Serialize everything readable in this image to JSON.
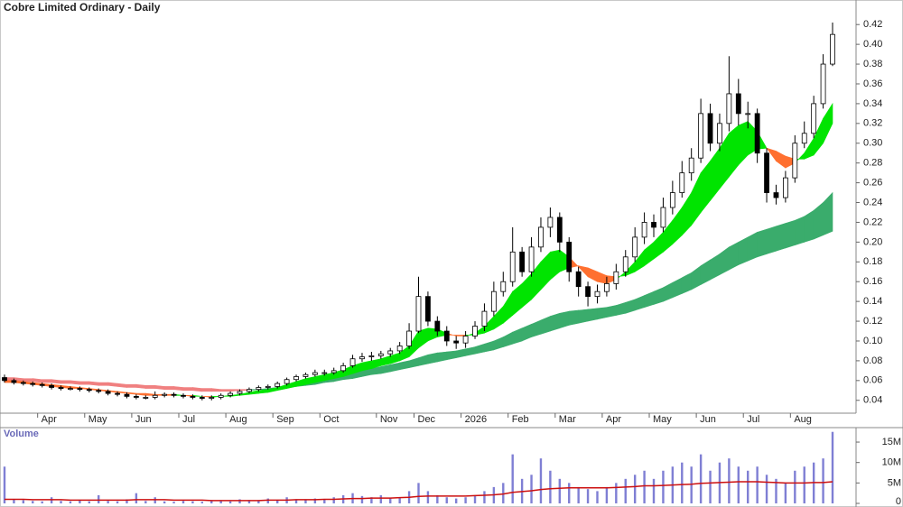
{
  "chart_data": {
    "type": "candlestick",
    "title": "Cobre Limited Ordinary - Daily",
    "categories": [
      null,
      null,
      null,
      null,
      "Apr",
      null,
      null,
      null,
      null,
      "May",
      null,
      null,
      null,
      null,
      "Jun",
      null,
      null,
      null,
      null,
      "Jul",
      null,
      null,
      null,
      null,
      "Aug",
      null,
      null,
      null,
      null,
      "Sep",
      null,
      null,
      null,
      null,
      "Oct",
      null,
      null,
      null,
      null,
      null,
      "Nov",
      null,
      null,
      null,
      "Dec",
      null,
      null,
      null,
      null,
      "2026",
      null,
      null,
      null,
      null,
      "Feb",
      null,
      null,
      null,
      null,
      "Mar",
      null,
      null,
      null,
      null,
      "Apr",
      null,
      null,
      null,
      null,
      "May",
      null,
      null,
      null,
      null,
      "Jun",
      null,
      null,
      null,
      null,
      "Jul",
      null,
      null,
      null,
      null,
      "Aug",
      null,
      null,
      null,
      null
    ],
    "open": [
      0.063,
      0.06,
      0.058,
      0.057,
      0.056,
      0.055,
      0.053,
      0.052,
      0.052,
      0.051,
      0.05,
      0.049,
      0.047,
      0.046,
      0.044,
      0.043,
      0.043,
      0.045,
      0.046,
      0.045,
      0.044,
      0.043,
      0.042,
      0.043,
      0.045,
      0.047,
      0.049,
      0.051,
      0.053,
      0.054,
      0.057,
      0.061,
      0.064,
      0.066,
      0.068,
      0.068,
      0.07,
      0.075,
      0.082,
      0.084,
      0.085,
      0.087,
      0.09,
      0.095,
      0.11,
      0.145,
      0.12,
      0.11,
      0.1,
      0.098,
      0.105,
      0.115,
      0.13,
      0.15,
      0.16,
      0.19,
      0.17,
      0.195,
      0.215,
      0.225,
      0.2,
      0.17,
      0.155,
      0.145,
      0.15,
      0.158,
      0.17,
      0.185,
      0.205,
      0.22,
      0.215,
      0.235,
      0.25,
      0.27,
      0.285,
      0.33,
      0.3,
      0.32,
      0.35,
      0.33,
      0.33,
      0.29,
      0.25,
      0.245,
      0.265,
      0.3,
      0.31,
      0.34,
      0.38
    ],
    "high": [
      0.066,
      0.062,
      0.06,
      0.059,
      0.058,
      0.057,
      0.055,
      0.054,
      0.054,
      0.053,
      0.052,
      0.051,
      0.049,
      0.048,
      0.046,
      0.045,
      0.049,
      0.048,
      0.048,
      0.047,
      0.046,
      0.045,
      0.045,
      0.047,
      0.049,
      0.051,
      0.053,
      0.055,
      0.056,
      0.059,
      0.063,
      0.066,
      0.068,
      0.071,
      0.071,
      0.073,
      0.078,
      0.086,
      0.088,
      0.089,
      0.09,
      0.093,
      0.099,
      0.118,
      0.165,
      0.15,
      0.125,
      0.115,
      0.105,
      0.11,
      0.12,
      0.138,
      0.16,
      0.17,
      0.215,
      0.195,
      0.205,
      0.225,
      0.235,
      0.23,
      0.205,
      0.175,
      0.16,
      0.157,
      0.165,
      0.178,
      0.192,
      0.215,
      0.23,
      0.228,
      0.245,
      0.262,
      0.282,
      0.295,
      0.345,
      0.34,
      0.33,
      0.388,
      0.365,
      0.342,
      0.335,
      0.295,
      0.258,
      0.272,
      0.308,
      0.322,
      0.348,
      0.39,
      0.422
    ],
    "low": [
      0.058,
      0.056,
      0.055,
      0.054,
      0.053,
      0.051,
      0.05,
      0.05,
      0.049,
      0.048,
      0.047,
      0.045,
      0.044,
      0.042,
      0.041,
      0.041,
      0.041,
      0.043,
      0.043,
      0.042,
      0.041,
      0.04,
      0.04,
      0.041,
      0.043,
      0.045,
      0.047,
      0.049,
      0.051,
      0.052,
      0.055,
      0.059,
      0.062,
      0.064,
      0.065,
      0.066,
      0.068,
      0.073,
      0.079,
      0.08,
      0.082,
      0.084,
      0.087,
      0.092,
      0.108,
      0.115,
      0.105,
      0.095,
      0.092,
      0.093,
      0.102,
      0.11,
      0.125,
      0.145,
      0.155,
      0.165,
      0.165,
      0.19,
      0.205,
      0.19,
      0.16,
      0.145,
      0.135,
      0.138,
      0.145,
      0.152,
      0.165,
      0.18,
      0.198,
      0.205,
      0.21,
      0.228,
      0.245,
      0.262,
      0.28,
      0.292,
      0.292,
      0.312,
      0.318,
      0.315,
      0.28,
      0.24,
      0.238,
      0.24,
      0.26,
      0.295,
      0.305,
      0.335,
      0.378
    ],
    "close": [
      0.06,
      0.058,
      0.057,
      0.056,
      0.055,
      0.053,
      0.052,
      0.052,
      0.051,
      0.05,
      0.049,
      0.047,
      0.046,
      0.044,
      0.043,
      0.043,
      0.045,
      0.046,
      0.045,
      0.044,
      0.043,
      0.042,
      0.043,
      0.045,
      0.047,
      0.049,
      0.051,
      0.053,
      0.054,
      0.057,
      0.061,
      0.064,
      0.066,
      0.068,
      0.068,
      0.07,
      0.075,
      0.082,
      0.084,
      0.085,
      0.087,
      0.09,
      0.095,
      0.11,
      0.145,
      0.12,
      0.11,
      0.1,
      0.098,
      0.105,
      0.115,
      0.13,
      0.15,
      0.16,
      0.19,
      0.17,
      0.195,
      0.215,
      0.225,
      0.2,
      0.17,
      0.155,
      0.145,
      0.15,
      0.158,
      0.17,
      0.185,
      0.205,
      0.22,
      0.215,
      0.235,
      0.25,
      0.27,
      0.285,
      0.33,
      0.3,
      0.32,
      0.35,
      0.33,
      0.33,
      0.29,
      0.25,
      0.245,
      0.265,
      0.3,
      0.31,
      0.34,
      0.38,
      0.41
    ],
    "up_color": "#ffffff",
    "down_color": "#000000",
    "ylim": [
      0.027,
      0.443
    ],
    "yticks": [
      0.04,
      0.06,
      0.08,
      {
        "value": 0.1,
        "label": "0.10"
      },
      0.12,
      0.14,
      0.16,
      0.18,
      {
        "value": 0.2,
        "label": "0.20"
      },
      0.22,
      0.24,
      0.26,
      0.28,
      {
        "value": 0.3,
        "label": "0.30"
      },
      0.32,
      0.34,
      0.36,
      0.38,
      {
        "value": 0.4,
        "label": "0.40"
      },
      0.42
    ],
    "long_ribbon": {
      "up_color": "#3aac6c",
      "down_color": "#f08080",
      "fast": [
        0.06,
        0.06,
        0.059,
        0.059,
        0.058,
        0.058,
        0.057,
        0.057,
        0.056,
        0.056,
        0.055,
        0.055,
        0.054,
        0.053,
        0.053,
        0.052,
        0.052,
        0.051,
        0.051,
        0.05,
        0.05,
        0.049,
        0.049,
        0.049,
        0.049,
        0.05,
        0.05,
        0.051,
        0.052,
        0.053,
        0.055,
        0.056,
        0.058,
        0.06,
        0.062,
        0.064,
        0.066,
        0.068,
        0.07,
        0.072,
        0.074,
        0.076,
        0.078,
        0.08,
        0.083,
        0.086,
        0.088,
        0.089,
        0.09,
        0.092,
        0.094,
        0.097,
        0.1,
        0.104,
        0.109,
        0.113,
        0.117,
        0.121,
        0.125,
        0.128,
        0.13,
        0.131,
        0.132,
        0.133,
        0.134,
        0.136,
        0.139,
        0.142,
        0.146,
        0.15,
        0.154,
        0.159,
        0.164,
        0.169,
        0.176,
        0.182,
        0.188,
        0.195,
        0.2,
        0.205,
        0.21,
        0.213,
        0.216,
        0.219,
        0.222,
        0.226,
        0.232,
        0.24,
        0.25
      ],
      "slow": [
        0.063,
        0.063,
        0.062,
        0.062,
        0.061,
        0.061,
        0.06,
        0.06,
        0.059,
        0.059,
        0.058,
        0.058,
        0.057,
        0.056,
        0.056,
        0.055,
        0.055,
        0.054,
        0.054,
        0.053,
        0.053,
        0.052,
        0.052,
        0.051,
        0.051,
        0.051,
        0.051,
        0.051,
        0.051,
        0.052,
        0.053,
        0.054,
        0.055,
        0.056,
        0.058,
        0.059,
        0.061,
        0.062,
        0.064,
        0.066,
        0.067,
        0.069,
        0.071,
        0.073,
        0.075,
        0.077,
        0.079,
        0.081,
        0.083,
        0.085,
        0.087,
        0.089,
        0.091,
        0.094,
        0.097,
        0.1,
        0.104,
        0.107,
        0.11,
        0.113,
        0.116,
        0.118,
        0.12,
        0.122,
        0.124,
        0.126,
        0.128,
        0.131,
        0.134,
        0.137,
        0.14,
        0.144,
        0.148,
        0.152,
        0.157,
        0.162,
        0.167,
        0.172,
        0.177,
        0.181,
        0.185,
        0.188,
        0.191,
        0.194,
        0.197,
        0.2,
        0.203,
        0.207,
        0.211
      ]
    },
    "short_ribbon": {
      "up_color": "#00e400",
      "down_color": "#ff7030",
      "fast": [
        0.058,
        0.058,
        0.057,
        0.056,
        0.055,
        0.054,
        0.053,
        0.052,
        0.052,
        0.051,
        0.05,
        0.049,
        0.048,
        0.047,
        0.046,
        0.045,
        0.045,
        0.045,
        0.045,
        0.045,
        0.044,
        0.044,
        0.043,
        0.044,
        0.045,
        0.046,
        0.048,
        0.05,
        0.051,
        0.053,
        0.056,
        0.059,
        0.062,
        0.064,
        0.066,
        0.068,
        0.071,
        0.075,
        0.078,
        0.08,
        0.082,
        0.085,
        0.088,
        0.095,
        0.11,
        0.113,
        0.112,
        0.108,
        0.105,
        0.105,
        0.108,
        0.115,
        0.125,
        0.135,
        0.15,
        0.158,
        0.168,
        0.18,
        0.19,
        0.192,
        0.185,
        0.175,
        0.165,
        0.16,
        0.158,
        0.162,
        0.17,
        0.18,
        0.192,
        0.2,
        0.21,
        0.222,
        0.235,
        0.25,
        0.27,
        0.282,
        0.295,
        0.31,
        0.318,
        0.322,
        0.312,
        0.295,
        0.282,
        0.275,
        0.28,
        0.29,
        0.305,
        0.325,
        0.34
      ],
      "slow": [
        0.06,
        0.06,
        0.059,
        0.058,
        0.057,
        0.056,
        0.055,
        0.054,
        0.053,
        0.052,
        0.051,
        0.05,
        0.049,
        0.048,
        0.047,
        0.047,
        0.046,
        0.046,
        0.046,
        0.045,
        0.045,
        0.044,
        0.044,
        0.044,
        0.044,
        0.045,
        0.046,
        0.047,
        0.048,
        0.05,
        0.052,
        0.054,
        0.056,
        0.058,
        0.06,
        0.062,
        0.064,
        0.067,
        0.07,
        0.072,
        0.075,
        0.077,
        0.08,
        0.084,
        0.093,
        0.1,
        0.104,
        0.106,
        0.106,
        0.106,
        0.106,
        0.108,
        0.112,
        0.118,
        0.126,
        0.134,
        0.142,
        0.152,
        0.162,
        0.17,
        0.174,
        0.176,
        0.174,
        0.17,
        0.166,
        0.165,
        0.166,
        0.17,
        0.176,
        0.183,
        0.19,
        0.198,
        0.207,
        0.217,
        0.23,
        0.242,
        0.254,
        0.266,
        0.278,
        0.288,
        0.294,
        0.295,
        0.292,
        0.287,
        0.284,
        0.284,
        0.288,
        0.3,
        0.32
      ]
    },
    "volume": {
      "label": "Volume",
      "color": "#7f7fd4",
      "ma_color": "#cc1010",
      "ylim": [
        0,
        18.1
      ],
      "yticks": [
        0,
        {
          "value": 5,
          "label": "5M"
        },
        {
          "value": 10,
          "label": "10M"
        },
        {
          "value": 15,
          "label": "15M"
        }
      ],
      "values": [
        9,
        1,
        0.8,
        0.6,
        0.5,
        1.5,
        0.6,
        0.5,
        0.8,
        0.5,
        2,
        0.6,
        0.5,
        1,
        2.5,
        0.6,
        1.5,
        0.5,
        0.4,
        0.6,
        0.5,
        0.4,
        0.8,
        0.6,
        0.5,
        1,
        0.8,
        0.7,
        1.2,
        0.8,
        1.5,
        1,
        0.9,
        1.2,
        1,
        1.5,
        2,
        2.5,
        1.8,
        1.5,
        2,
        1.2,
        1.5,
        3,
        5,
        3,
        2,
        1.5,
        1.2,
        1.5,
        2,
        3,
        4,
        5,
        12,
        6,
        7,
        11,
        8,
        6,
        5,
        4,
        3.5,
        3,
        4,
        5,
        6,
        7,
        8,
        6,
        8,
        9,
        10,
        9,
        12,
        8,
        10,
        11,
        9,
        8,
        9,
        7,
        6,
        5,
        8,
        9,
        10,
        11,
        17.5
      ],
      "ma": [
        1.0,
        1.0,
        1.0,
        0.9,
        0.9,
        0.9,
        0.9,
        0.8,
        0.8,
        0.8,
        0.8,
        0.8,
        0.8,
        0.8,
        0.9,
        0.9,
        0.9,
        0.9,
        0.8,
        0.8,
        0.8,
        0.8,
        0.7,
        0.7,
        0.7,
        0.7,
        0.7,
        0.7,
        0.8,
        0.8,
        0.8,
        0.9,
        0.9,
        0.9,
        1.0,
        1.0,
        1.1,
        1.2,
        1.2,
        1.3,
        1.3,
        1.3,
        1.4,
        1.5,
        1.7,
        1.8,
        1.8,
        1.8,
        1.8,
        1.8,
        1.9,
        2.0,
        2.1,
        2.3,
        2.7,
        2.9,
        3.1,
        3.4,
        3.6,
        3.7,
        3.8,
        3.8,
        3.8,
        3.8,
        3.8,
        3.9,
        4.0,
        4.1,
        4.3,
        4.3,
        4.4,
        4.5,
        4.6,
        4.7,
        4.9,
        5.0,
        5.1,
        5.2,
        5.3,
        5.3,
        5.3,
        5.2,
        5.1,
        5.0,
        5.0,
        5.0,
        5.1,
        5.1,
        5.3
      ]
    }
  }
}
